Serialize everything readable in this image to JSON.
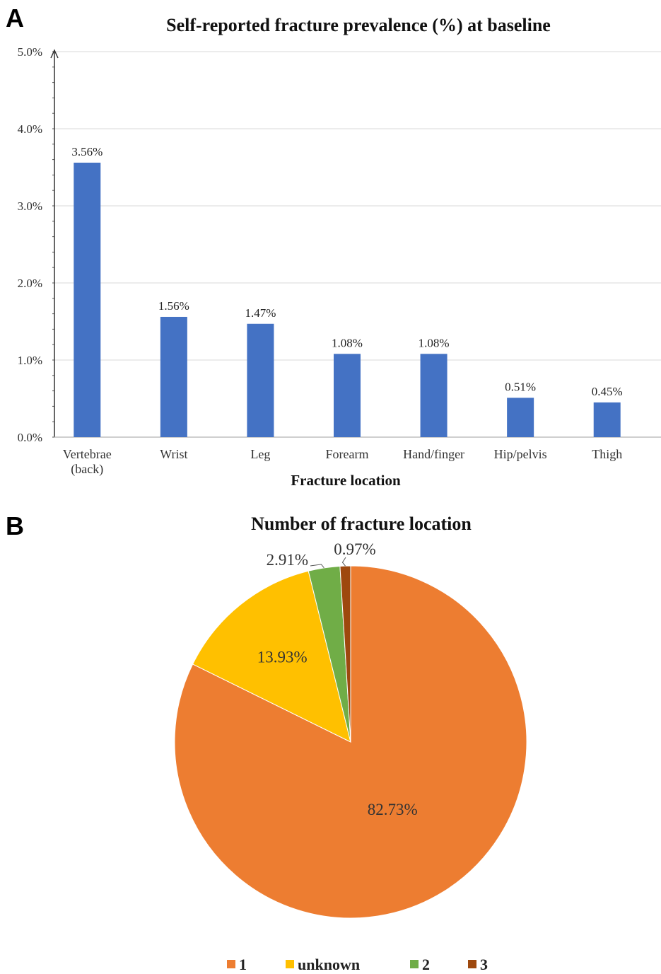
{
  "panels": {
    "a": "A",
    "b": "B"
  },
  "chart_data": [
    {
      "type": "bar",
      "title": "Self-reported fracture prevalence (%) at baseline",
      "xlabel": "Fracture location",
      "ylabel": "",
      "ylim": [
        0,
        5.0
      ],
      "y_ticks": [
        "0.0%",
        "1.0%",
        "2.0%",
        "3.0%",
        "4.0%",
        "5.0%"
      ],
      "grid": true,
      "categories": [
        [
          "Vertebrae",
          "(back)"
        ],
        [
          "Wrist"
        ],
        [
          "Leg"
        ],
        [
          "Forearm"
        ],
        [
          "Hand/finger"
        ],
        [
          "Hip/pelvis"
        ],
        [
          "Thigh"
        ]
      ],
      "values": [
        3.56,
        1.56,
        1.47,
        1.08,
        1.08,
        0.51,
        0.45
      ],
      "data_labels": [
        "3.56%",
        "1.56%",
        "1.47%",
        "1.08%",
        "1.08%",
        "0.51%",
        "0.45%"
      ],
      "bar_color": "#4472C4"
    },
    {
      "type": "pie",
      "title": "Number of fracture location",
      "legend_position": "bottom",
      "slices": [
        {
          "name": "1",
          "value": 82.73,
          "label": "82.73%",
          "color": "#ED7D31"
        },
        {
          "name": "unknown",
          "value": 13.93,
          "label": "13.93%",
          "color": "#FFC000"
        },
        {
          "name": "2",
          "value": 2.91,
          "label": "2.91%",
          "color": "#70AD47"
        },
        {
          "name": "3",
          "value": 0.97,
          "label": "0.97%",
          "color": "#9E480E"
        }
      ]
    }
  ]
}
